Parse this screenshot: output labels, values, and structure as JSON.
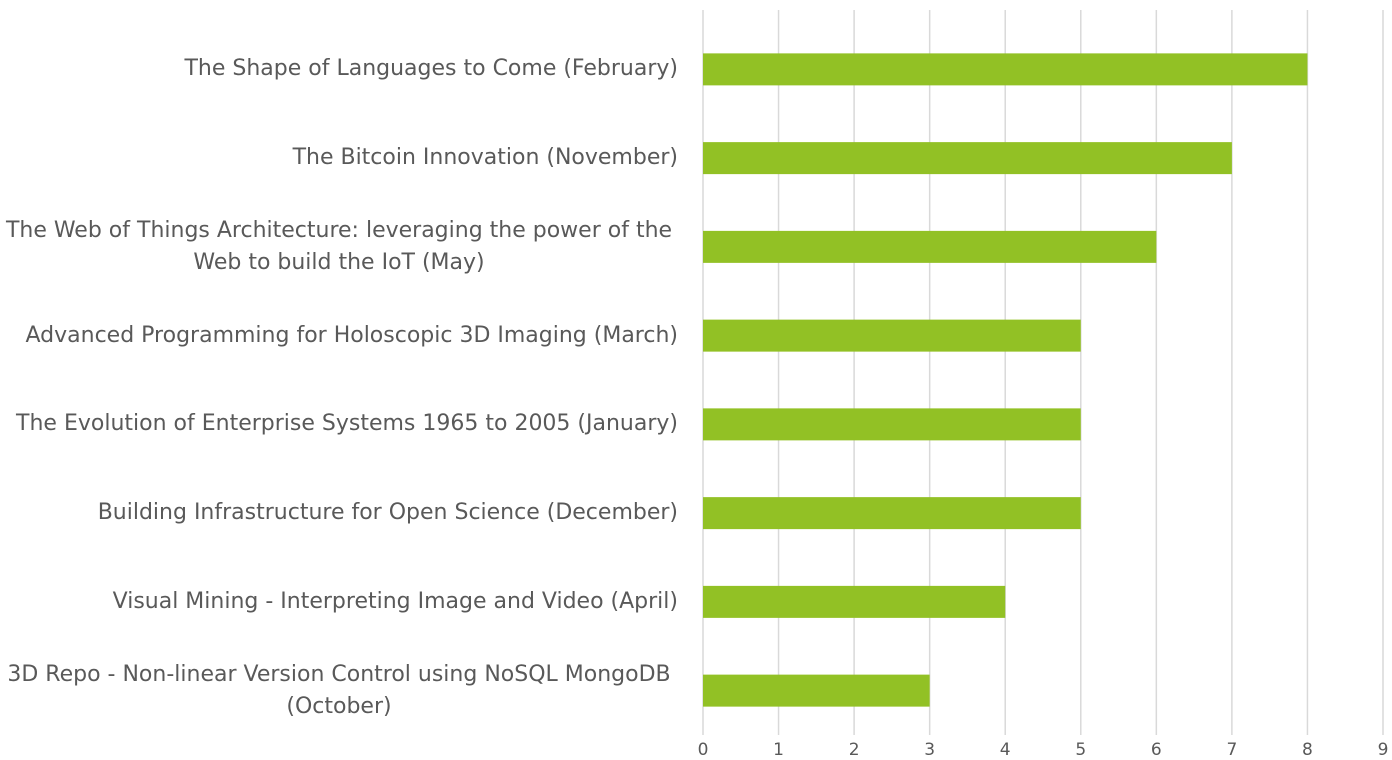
{
  "chart_data": {
    "type": "bar",
    "orientation": "horizontal",
    "categories": [
      "The Shape of Languages to Come (February)",
      "The Bitcoin Innovation (November)",
      "The Web of Things Architecture: leveraging the power of the Web to build the IoT (May)",
      "Advanced Programming for Holoscopic 3D Imaging (March)",
      "The Evolution of Enterprise Systems 1965 to 2005 (January)",
      "Building Infrastructure for Open Science (December)",
      "Visual Mining - Interpreting Image and Video (April)",
      "3D Repo - Non-linear Version Control using NoSQL MongoDB (October)"
    ],
    "values": [
      8,
      7,
      6,
      5,
      5,
      5,
      4,
      3
    ],
    "color": "#92c125",
    "xlim": [
      0,
      9
    ],
    "xticks": [
      0,
      1,
      2,
      3,
      4,
      5,
      6,
      7,
      8,
      9
    ],
    "grid": true
  }
}
